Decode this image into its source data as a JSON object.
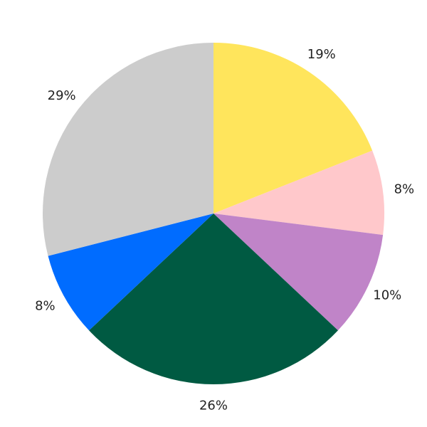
{
  "chart_data": {
    "type": "pie",
    "start_angle": "top",
    "direction": "clockwise",
    "slices": [
      {
        "label": "19%",
        "value": 19,
        "color": "#FFE55C"
      },
      {
        "label": "8%",
        "value": 8,
        "color": "#FFC8CB"
      },
      {
        "label": "10%",
        "value": 10,
        "color": "#C084C8"
      },
      {
        "label": "26%",
        "value": 26,
        "color": "#005A42"
      },
      {
        "label": "8%",
        "value": 8,
        "color": "#006CFF"
      },
      {
        "label": "29%",
        "value": 29,
        "color": "#CCCCCC"
      }
    ]
  }
}
